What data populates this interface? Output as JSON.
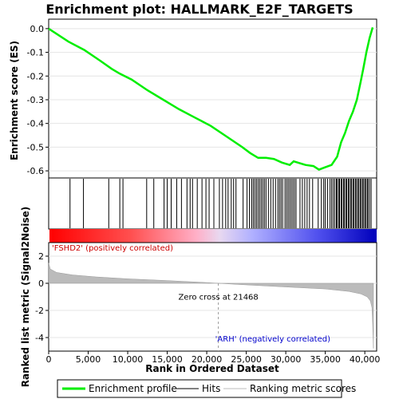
{
  "chart_data": {
    "type": "line",
    "title": "Enrichment plot: HALLMARK_E2F_TARGETS",
    "es_panel": {
      "ylabel": "Enrichment score (ES)",
      "ylim": [
        -0.63,
        0.04
      ],
      "yticks": [
        0.0,
        -0.1,
        -0.2,
        -0.3,
        -0.4,
        -0.5,
        -0.6
      ],
      "ytick_labels": [
        "0.0",
        "-0.1",
        "-0.2",
        "-0.3",
        "-0.4",
        "-0.5",
        "-0.6"
      ],
      "grid": true,
      "series": [
        {
          "name": "Enrichment profile",
          "color": "#00ee00",
          "x": [
            0,
            2500,
            4500,
            6500,
            8000,
            9000,
            10500,
            12500,
            14500,
            16500,
            18500,
            20500,
            22500,
            24500,
            25500,
            26500,
            27500,
            28500,
            29500,
            30500,
            31000,
            31500,
            32500,
            33500,
            34200,
            35000,
            35800,
            36500,
            37000,
            37500,
            38000,
            38500,
            39000,
            39500,
            39800,
            40200,
            40600,
            41000
          ],
          "values": [
            0.0,
            -0.055,
            -0.09,
            -0.135,
            -0.17,
            -0.19,
            -0.215,
            -0.26,
            -0.3,
            -0.34,
            -0.375,
            -0.41,
            -0.455,
            -0.5,
            -0.525,
            -0.545,
            -0.545,
            -0.55,
            -0.565,
            -0.575,
            -0.56,
            -0.565,
            -0.575,
            -0.58,
            -0.595,
            -0.585,
            -0.575,
            -0.54,
            -0.48,
            -0.44,
            -0.39,
            -0.35,
            -0.3,
            -0.22,
            -0.17,
            -0.1,
            -0.04,
            0.005
          ]
        }
      ]
    },
    "hits_panel": {
      "legend_name": "Hits",
      "hit_positions": [
        2700,
        4400,
        7600,
        9000,
        9400,
        12400,
        13300,
        14600,
        15000,
        15500,
        16200,
        16800,
        17500,
        17900,
        18200,
        18800,
        19400,
        19900,
        20300,
        20900,
        21600,
        22000,
        22400,
        22700,
        23100,
        23400,
        23700,
        24600,
        25100,
        25400,
        25700,
        25900,
        26100,
        26300,
        26500,
        26700,
        26900,
        27100,
        27300,
        27500,
        27800,
        28100,
        28400,
        28700,
        29000,
        29200,
        29400,
        29600,
        29900,
        30100,
        30300,
        30500,
        30700,
        30900,
        31100,
        31300,
        31800,
        32100,
        32400,
        32700,
        33000,
        33400,
        34100,
        34500,
        34800,
        35000,
        35300,
        35600,
        35800,
        36000,
        36200,
        36400,
        36500,
        36700,
        36800,
        37000,
        37100,
        37300,
        37400,
        37600,
        37700,
        37900,
        38000,
        38200,
        38300,
        38500,
        38600,
        38800,
        38900,
        39100,
        39200,
        39400,
        39500,
        39700,
        39800,
        40000,
        40100,
        40300,
        40400,
        40600,
        40800
      ]
    },
    "metric_panel": {
      "ylabel": "Ranked list metric (Signal2Noise)",
      "legend_name": "Ranking metric scores",
      "ylim": [
        -5,
        3
      ],
      "yticks": [
        2,
        0,
        -2,
        -4
      ],
      "ytick_labels": [
        "2",
        "0",
        "-2",
        "-4"
      ],
      "grid": true,
      "fill_color": "#bbbbbb",
      "x": [
        0,
        200,
        1000,
        3000,
        6000,
        10000,
        15000,
        20000,
        21468,
        25000,
        30000,
        35000,
        38000,
        39500,
        40300,
        40700,
        40900,
        41000,
        41100
      ],
      "values": [
        1.5,
        1.05,
        0.8,
        0.62,
        0.47,
        0.33,
        0.2,
        0.05,
        0.0,
        -0.12,
        -0.27,
        -0.42,
        -0.6,
        -0.78,
        -1.0,
        -1.3,
        -1.8,
        -3.0,
        -4.8
      ],
      "zero_cross_label": "Zero cross at 21468",
      "zero_cross": 21468,
      "pos_label": "'FSHD2' (positively correlated)",
      "neg_label": "'ARH' (negatively correlated)"
    },
    "xaxis": {
      "xlabel": "Rank in Ordered Dataset",
      "xlim": [
        0,
        41500
      ],
      "xticks": [
        0,
        5000,
        10000,
        15000,
        20000,
        25000,
        30000,
        35000,
        40000
      ],
      "xtick_labels": [
        "0",
        "5,000",
        "10,000",
        "15,000",
        "20,000",
        "25,000",
        "30,000",
        "35,000",
        "40,000"
      ]
    },
    "legend": {
      "placement": "bottom",
      "items": [
        {
          "name": "Enrichment profile",
          "color": "#00ee00"
        },
        {
          "name": "Hits",
          "color": "#000000"
        },
        {
          "name": "Ranking metric scores",
          "color": "#bbbbbb"
        }
      ]
    }
  }
}
